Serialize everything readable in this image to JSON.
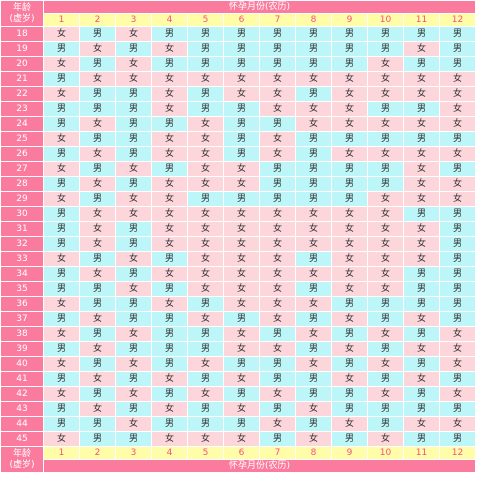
{
  "header": {
    "age_label_line1": "年龄",
    "age_label_line2": "(虚岁)",
    "title": "怀孕月份(农历)"
  },
  "months": [
    "1",
    "2",
    "3",
    "4",
    "5",
    "6",
    "7",
    "8",
    "9",
    "10",
    "11",
    "12"
  ],
  "legend": {
    "boy": "男",
    "girl": "女",
    "boy_color": "#bdf6f8",
    "girl_color": "#fdd6dc",
    "accent": "#fb7b9f",
    "month_bg": "#fffda8"
  },
  "rows": [
    {
      "age": "18",
      "cells": [
        "女",
        "男",
        "女",
        "男",
        "男",
        "男",
        "男",
        "男",
        "男",
        "男",
        "男",
        "男"
      ]
    },
    {
      "age": "19",
      "cells": [
        "男",
        "女",
        "男",
        "女",
        "男",
        "男",
        "男",
        "男",
        "男",
        "男",
        "女",
        "男"
      ]
    },
    {
      "age": "20",
      "cells": [
        "女",
        "男",
        "女",
        "男",
        "男",
        "男",
        "男",
        "男",
        "男",
        "女",
        "男",
        "男"
      ]
    },
    {
      "age": "21",
      "cells": [
        "男",
        "女",
        "女",
        "女",
        "女",
        "女",
        "女",
        "女",
        "女",
        "女",
        "女",
        "女"
      ]
    },
    {
      "age": "22",
      "cells": [
        "女",
        "男",
        "男",
        "女",
        "男",
        "女",
        "女",
        "男",
        "女",
        "女",
        "女",
        "女"
      ]
    },
    {
      "age": "23",
      "cells": [
        "男",
        "男",
        "男",
        "女",
        "男",
        "男",
        "女",
        "女",
        "女",
        "男",
        "男",
        "女"
      ]
    },
    {
      "age": "24",
      "cells": [
        "男",
        "女",
        "男",
        "男",
        "女",
        "男",
        "男",
        "女",
        "女",
        "女",
        "女",
        "女"
      ]
    },
    {
      "age": "25",
      "cells": [
        "女",
        "男",
        "男",
        "女",
        "女",
        "男",
        "女",
        "男",
        "男",
        "男",
        "男",
        "男"
      ]
    },
    {
      "age": "26",
      "cells": [
        "男",
        "女",
        "男",
        "女",
        "女",
        "男",
        "女",
        "男",
        "女",
        "女",
        "女",
        "女"
      ]
    },
    {
      "age": "27",
      "cells": [
        "女",
        "男",
        "女",
        "男",
        "女",
        "女",
        "男",
        "男",
        "男",
        "男",
        "女",
        "男"
      ]
    },
    {
      "age": "28",
      "cells": [
        "男",
        "女",
        "男",
        "女",
        "女",
        "女",
        "男",
        "男",
        "男",
        "男",
        "女",
        "女"
      ]
    },
    {
      "age": "29",
      "cells": [
        "女",
        "男",
        "女",
        "女",
        "男",
        "男",
        "男",
        "男",
        "男",
        "女",
        "女",
        "女"
      ]
    },
    {
      "age": "30",
      "cells": [
        "男",
        "女",
        "女",
        "女",
        "女",
        "女",
        "女",
        "女",
        "女",
        "女",
        "男",
        "男"
      ]
    },
    {
      "age": "31",
      "cells": [
        "男",
        "女",
        "男",
        "女",
        "女",
        "女",
        "女",
        "女",
        "女",
        "女",
        "女",
        "男"
      ]
    },
    {
      "age": "32",
      "cells": [
        "男",
        "女",
        "男",
        "女",
        "女",
        "女",
        "女",
        "女",
        "女",
        "女",
        "女",
        "男"
      ]
    },
    {
      "age": "33",
      "cells": [
        "女",
        "男",
        "女",
        "男",
        "女",
        "女",
        "女",
        "男",
        "女",
        "女",
        "女",
        "男"
      ]
    },
    {
      "age": "34",
      "cells": [
        "男",
        "女",
        "男",
        "女",
        "女",
        "女",
        "女",
        "女",
        "女",
        "女",
        "男",
        "男"
      ]
    },
    {
      "age": "35",
      "cells": [
        "男",
        "男",
        "女",
        "男",
        "女",
        "女",
        "女",
        "男",
        "女",
        "女",
        "男",
        "男"
      ]
    },
    {
      "age": "36",
      "cells": [
        "女",
        "男",
        "男",
        "女",
        "男",
        "女",
        "女",
        "女",
        "男",
        "男",
        "男",
        "男"
      ]
    },
    {
      "age": "37",
      "cells": [
        "男",
        "女",
        "男",
        "男",
        "女",
        "男",
        "女",
        "男",
        "女",
        "男",
        "女",
        "男"
      ]
    },
    {
      "age": "38",
      "cells": [
        "女",
        "男",
        "女",
        "男",
        "男",
        "女",
        "男",
        "女",
        "男",
        "女",
        "男",
        "女"
      ]
    },
    {
      "age": "39",
      "cells": [
        "男",
        "女",
        "男",
        "男",
        "男",
        "女",
        "女",
        "男",
        "女",
        "男",
        "女",
        "女"
      ]
    },
    {
      "age": "40",
      "cells": [
        "女",
        "男",
        "女",
        "男",
        "女",
        "男",
        "男",
        "女",
        "男",
        "女",
        "男",
        "女"
      ]
    },
    {
      "age": "41",
      "cells": [
        "男",
        "女",
        "男",
        "女",
        "男",
        "女",
        "男",
        "男",
        "女",
        "男",
        "女",
        "男"
      ]
    },
    {
      "age": "42",
      "cells": [
        "女",
        "男",
        "女",
        "男",
        "女",
        "男",
        "女",
        "男",
        "男",
        "女",
        "男",
        "女"
      ]
    },
    {
      "age": "43",
      "cells": [
        "男",
        "女",
        "男",
        "女",
        "男",
        "女",
        "男",
        "女",
        "男",
        "男",
        "男",
        "男"
      ]
    },
    {
      "age": "44",
      "cells": [
        "男",
        "男",
        "女",
        "男",
        "男",
        "男",
        "女",
        "男",
        "女",
        "男",
        "女",
        "女"
      ]
    },
    {
      "age": "45",
      "cells": [
        "女",
        "男",
        "男",
        "女",
        "女",
        "女",
        "男",
        "女",
        "男",
        "女",
        "男",
        "男"
      ]
    }
  ]
}
